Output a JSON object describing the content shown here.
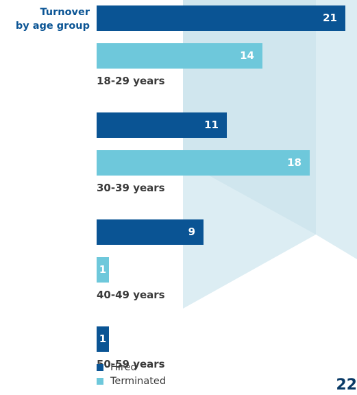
{
  "chart_data": {
    "type": "bar",
    "orientation": "horizontal",
    "title_lines": [
      "Turnover",
      "by age group"
    ],
    "categories": [
      "18-29 years",
      "30-39 years",
      "40-49 years",
      "50-59 years"
    ],
    "series": [
      {
        "name": "Hired",
        "color": "#0a5494",
        "values": [
          21,
          11,
          9,
          1
        ]
      },
      {
        "name": "Terminated",
        "color": "#6ec8db",
        "values": [
          14,
          18,
          1,
          null
        ]
      }
    ],
    "xlim": [
      0,
      21
    ],
    "grid": false,
    "legend_position": "bottom-left"
  },
  "page_number": "22"
}
